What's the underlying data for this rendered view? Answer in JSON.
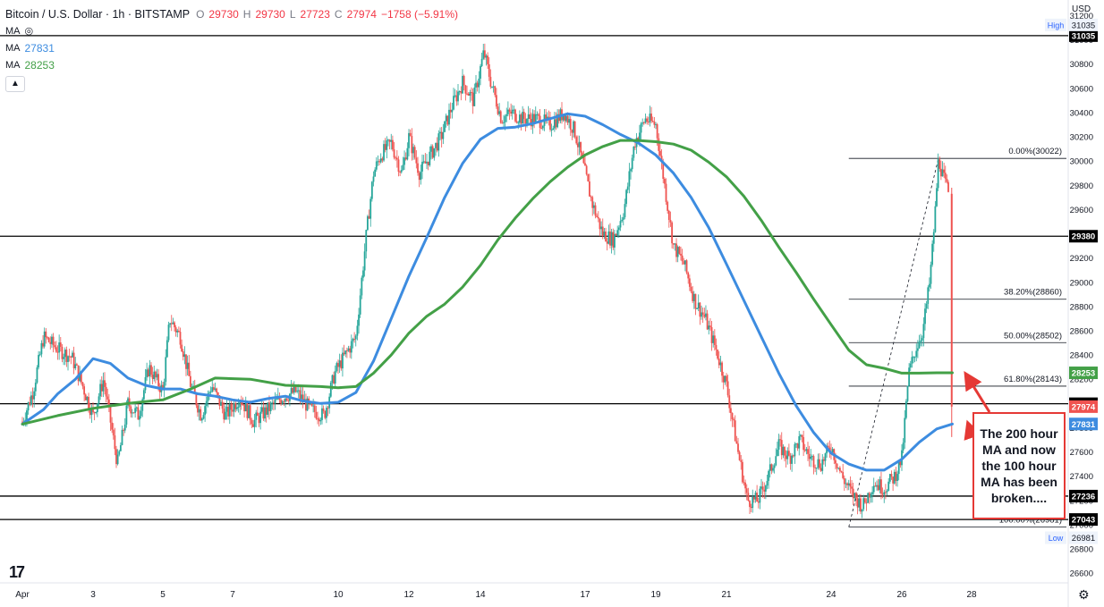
{
  "legend": {
    "symbol": "Bitcoin / U.S. Dollar · 1h · BITSTAMP",
    "o_label": "O",
    "o_value": "29730",
    "h_label": "H",
    "h_value": "29730",
    "l_label": "L",
    "l_value": "27723",
    "c_label": "C",
    "c_value": "27974",
    "change": "−1758 (−5.91%)",
    "ma_label": "MA",
    "ma100_value": "27831",
    "ma200_value": "28253"
  },
  "currency": "USD",
  "annotation": "The 200 hour MA and now the 100 hour MA has been broken....",
  "logo": "17",
  "colors": {
    "up": "#26a69a",
    "down": "#ef5350",
    "ma100": "#3d8ce0",
    "ma200": "#43a047",
    "arrow": "#e53935",
    "level": "#000000"
  },
  "chart_data": {
    "type": "candlestick",
    "timeframe": "1h",
    "x_ticks": [
      "Apr",
      "3",
      "5",
      "7",
      "10",
      "12",
      "14",
      "17",
      "19",
      "21",
      "24",
      "26",
      "28"
    ],
    "y_ticks": [
      26600,
      26800,
      27000,
      27200,
      27400,
      27600,
      27800,
      28000,
      28200,
      28400,
      28600,
      28800,
      29000,
      29200,
      29400,
      29600,
      29800,
      30000,
      30200,
      30400,
      30600,
      30800,
      31000,
      31200
    ],
    "ylim": [
      26520,
      31270
    ],
    "xlim": [
      0,
      28.0
    ],
    "horizontal_levels": [
      {
        "price": 31035,
        "label": "31035"
      },
      {
        "price": 29380,
        "label": "29380"
      },
      {
        "price": 27998,
        "label": "27998"
      },
      {
        "price": 27236,
        "label": "27236"
      },
      {
        "price": 27043,
        "label": "27043"
      }
    ],
    "price_tags": [
      {
        "price": 31035,
        "label": "31035",
        "tag": "High"
      },
      {
        "price": 28253,
        "label": "28253",
        "series": "ma200"
      },
      {
        "price": 27974,
        "label": "27974",
        "series": "close"
      },
      {
        "price": 27831,
        "label": "27831",
        "series": "ma100"
      },
      {
        "price": 26981,
        "label": "26981",
        "tag": "Low"
      }
    ],
    "fibonacci": {
      "x_start": 24.5,
      "x_end": 27.5,
      "levels": [
        {
          "ratio": "0.00%",
          "price": 30022
        },
        {
          "ratio": "38.20%",
          "price": 28860
        },
        {
          "ratio": "50.00%",
          "price": 28502
        },
        {
          "ratio": "61.80%",
          "price": 28143
        },
        {
          "ratio": "100.00%",
          "price": 26981
        }
      ],
      "labels": [
        "0.00%(30022)",
        "38.20%(28860)",
        "50.00%(28502)",
        "61.80%(28143)",
        "100.00%(26981)"
      ]
    },
    "price_path": [
      [
        1.0,
        27850
      ],
      [
        1.3,
        28100
      ],
      [
        1.6,
        28550
      ],
      [
        2.0,
        28450
      ],
      [
        2.4,
        28380
      ],
      [
        2.7,
        28150
      ],
      [
        3.0,
        27900
      ],
      [
        3.3,
        28200
      ],
      [
        3.7,
        27500
      ],
      [
        4.0,
        28000
      ],
      [
        4.3,
        27900
      ],
      [
        4.6,
        28300
      ],
      [
        5.0,
        28100
      ],
      [
        5.2,
        28700
      ],
      [
        5.5,
        28550
      ],
      [
        5.8,
        28150
      ],
      [
        6.1,
        27900
      ],
      [
        6.4,
        28150
      ],
      [
        6.8,
        27900
      ],
      [
        7.2,
        28050
      ],
      [
        7.6,
        27850
      ],
      [
        8.0,
        27950
      ],
      [
        8.4,
        28050
      ],
      [
        8.8,
        28100
      ],
      [
        9.2,
        27950
      ],
      [
        9.6,
        27900
      ],
      [
        9.9,
        28250
      ],
      [
        10.2,
        28400
      ],
      [
        10.5,
        28550
      ],
      [
        10.8,
        29400
      ],
      [
        11.0,
        29900
      ],
      [
        11.2,
        30050
      ],
      [
        11.5,
        30150
      ],
      [
        11.8,
        29900
      ],
      [
        12.0,
        30200
      ],
      [
        12.3,
        29900
      ],
      [
        12.6,
        30050
      ],
      [
        12.9,
        30200
      ],
      [
        13.2,
        30450
      ],
      [
        13.5,
        30650
      ],
      [
        13.8,
        30500
      ],
      [
        14.1,
        30900
      ],
      [
        14.3,
        30650
      ],
      [
        14.6,
        30350
      ],
      [
        14.9,
        30400
      ],
      [
        15.2,
        30350
      ],
      [
        15.6,
        30350
      ],
      [
        16.0,
        30300
      ],
      [
        16.4,
        30400
      ],
      [
        16.7,
        30250
      ],
      [
        17.0,
        29900
      ],
      [
        17.2,
        29650
      ],
      [
        17.5,
        29400
      ],
      [
        17.8,
        29350
      ],
      [
        18.1,
        29600
      ],
      [
        18.4,
        30150
      ],
      [
        18.7,
        30350
      ],
      [
        19.0,
        30300
      ],
      [
        19.2,
        29900
      ],
      [
        19.5,
        29300
      ],
      [
        19.8,
        29150
      ],
      [
        20.1,
        28850
      ],
      [
        20.4,
        28700
      ],
      [
        20.7,
        28450
      ],
      [
        21.0,
        28150
      ],
      [
        21.3,
        27650
      ],
      [
        21.6,
        27200
      ],
      [
        21.9,
        27200
      ],
      [
        22.2,
        27400
      ],
      [
        22.5,
        27650
      ],
      [
        22.8,
        27550
      ],
      [
        23.1,
        27700
      ],
      [
        23.4,
        27550
      ],
      [
        23.7,
        27500
      ],
      [
        24.0,
        27650
      ],
      [
        24.3,
        27400
      ],
      [
        24.6,
        27250
      ],
      [
        24.9,
        27150
      ],
      [
        25.2,
        27350
      ],
      [
        25.5,
        27300
      ],
      [
        25.8,
        27400
      ],
      [
        26.0,
        27550
      ],
      [
        26.2,
        28250
      ],
      [
        26.4,
        28450
      ],
      [
        26.6,
        28600
      ],
      [
        26.8,
        29000
      ],
      [
        26.95,
        29550
      ],
      [
        27.05,
        30022
      ],
      [
        27.2,
        29850
      ],
      [
        27.35,
        29730
      ],
      [
        27.45,
        27974
      ]
    ],
    "series": [
      {
        "name": "MA",
        "key": "ma100",
        "last_value": 27831,
        "points": [
          [
            1.0,
            27830
          ],
          [
            1.6,
            27950
          ],
          [
            2.0,
            28080
          ],
          [
            2.5,
            28200
          ],
          [
            3.0,
            28370
          ],
          [
            3.5,
            28330
          ],
          [
            4.0,
            28210
          ],
          [
            4.5,
            28150
          ],
          [
            5.0,
            28120
          ],
          [
            5.5,
            28120
          ],
          [
            6.0,
            28080
          ],
          [
            6.5,
            28060
          ],
          [
            7.0,
            28030
          ],
          [
            7.5,
            28010
          ],
          [
            8.0,
            28040
          ],
          [
            8.5,
            28060
          ],
          [
            9.0,
            28020
          ],
          [
            9.5,
            28000
          ],
          [
            10.0,
            28010
          ],
          [
            10.5,
            28090
          ],
          [
            11.0,
            28350
          ],
          [
            11.5,
            28700
          ],
          [
            12.0,
            29050
          ],
          [
            12.5,
            29370
          ],
          [
            13.0,
            29700
          ],
          [
            13.5,
            29980
          ],
          [
            14.0,
            30180
          ],
          [
            14.5,
            30270
          ],
          [
            15.0,
            30280
          ],
          [
            15.5,
            30310
          ],
          [
            16.0,
            30350
          ],
          [
            16.5,
            30390
          ],
          [
            17.0,
            30370
          ],
          [
            17.5,
            30300
          ],
          [
            18.0,
            30220
          ],
          [
            18.5,
            30150
          ],
          [
            19.0,
            30050
          ],
          [
            19.5,
            29900
          ],
          [
            20.0,
            29700
          ],
          [
            20.5,
            29450
          ],
          [
            21.0,
            29150
          ],
          [
            21.5,
            28850
          ],
          [
            22.0,
            28550
          ],
          [
            22.5,
            28250
          ],
          [
            23.0,
            27980
          ],
          [
            23.5,
            27760
          ],
          [
            24.0,
            27590
          ],
          [
            24.5,
            27500
          ],
          [
            25.0,
            27450
          ],
          [
            25.5,
            27450
          ],
          [
            26.0,
            27540
          ],
          [
            26.5,
            27680
          ],
          [
            27.0,
            27790
          ],
          [
            27.45,
            27831
          ]
        ]
      },
      {
        "name": "MA",
        "key": "ma200",
        "last_value": 28253,
        "points": [
          [
            1.0,
            27830
          ],
          [
            2.0,
            27900
          ],
          [
            3.0,
            27960
          ],
          [
            4.0,
            28000
          ],
          [
            5.0,
            28030
          ],
          [
            5.8,
            28120
          ],
          [
            6.5,
            28210
          ],
          [
            7.5,
            28200
          ],
          [
            8.5,
            28150
          ],
          [
            9.5,
            28140
          ],
          [
            10.0,
            28130
          ],
          [
            10.5,
            28140
          ],
          [
            11.0,
            28250
          ],
          [
            11.5,
            28400
          ],
          [
            12.0,
            28580
          ],
          [
            12.5,
            28720
          ],
          [
            13.0,
            28820
          ],
          [
            13.5,
            28960
          ],
          [
            14.0,
            29140
          ],
          [
            14.5,
            29350
          ],
          [
            15.0,
            29530
          ],
          [
            15.5,
            29690
          ],
          [
            16.0,
            29830
          ],
          [
            16.5,
            29950
          ],
          [
            17.0,
            30050
          ],
          [
            17.5,
            30120
          ],
          [
            18.0,
            30170
          ],
          [
            18.5,
            30170
          ],
          [
            19.0,
            30160
          ],
          [
            19.5,
            30140
          ],
          [
            20.0,
            30090
          ],
          [
            20.5,
            29990
          ],
          [
            21.0,
            29870
          ],
          [
            21.5,
            29710
          ],
          [
            22.0,
            29510
          ],
          [
            22.5,
            29290
          ],
          [
            23.0,
            29080
          ],
          [
            23.5,
            28860
          ],
          [
            24.0,
            28650
          ],
          [
            24.5,
            28440
          ],
          [
            25.0,
            28320
          ],
          [
            25.5,
            28290
          ],
          [
            26.0,
            28250
          ],
          [
            26.5,
            28250
          ],
          [
            27.0,
            28253
          ],
          [
            27.45,
            28253
          ]
        ]
      }
    ],
    "close": 27974
  }
}
